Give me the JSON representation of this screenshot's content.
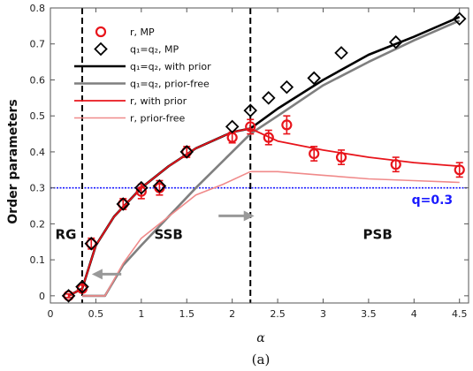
{
  "chart_data": {
    "type": "line",
    "xlabel": "α",
    "ylabel": "Order parameters",
    "caption": "(a)",
    "xlim": [
      0,
      4.6
    ],
    "ylim": [
      -0.02,
      0.8
    ],
    "xticks": [
      0,
      0.5,
      1,
      1.5,
      2,
      2.5,
      3,
      3.5,
      4,
      4.5
    ],
    "xtick_labels": [
      "0",
      "0.5",
      "1",
      "1.5",
      "2",
      "2.5",
      "3",
      "3.5",
      "4",
      "4.5"
    ],
    "yticks": [
      0,
      0.1,
      0.2,
      0.3,
      0.4,
      0.5,
      0.6,
      0.7,
      0.8
    ],
    "ytick_labels": [
      "0",
      "0.1",
      "0.2",
      "0.3",
      "0.4",
      "0.5",
      "0.6",
      "0.7",
      "0.8"
    ],
    "grid": false,
    "legend_position": "top-left",
    "series": [
      {
        "name": "r, MP",
        "kind": "scatter-errorbar",
        "marker": "circle",
        "color": "#e8141b",
        "x": [
          0.2,
          0.35,
          0.45,
          0.8,
          1.0,
          1.2,
          1.5,
          2.0,
          2.2,
          2.4,
          2.6,
          2.9,
          3.2,
          3.8,
          4.5
        ],
        "y": [
          0.0,
          0.02,
          0.145,
          0.255,
          0.29,
          0.3,
          0.4,
          0.44,
          0.47,
          0.44,
          0.475,
          0.395,
          0.385,
          0.365,
          0.35
        ],
        "err": [
          0.005,
          0.01,
          0.015,
          0.015,
          0.02,
          0.02,
          0.015,
          0.015,
          0.02,
          0.02,
          0.025,
          0.02,
          0.02,
          0.02,
          0.02
        ]
      },
      {
        "name": "q₁=q₂, MP",
        "kind": "scatter",
        "marker": "diamond",
        "color": "#000000",
        "x": [
          0.2,
          0.35,
          0.45,
          0.8,
          1.0,
          1.2,
          1.5,
          2.0,
          2.2,
          2.4,
          2.6,
          2.9,
          3.2,
          3.8,
          4.5
        ],
        "y": [
          0.0,
          0.025,
          0.145,
          0.255,
          0.3,
          0.305,
          0.4,
          0.47,
          0.515,
          0.55,
          0.58,
          0.605,
          0.675,
          0.705,
          0.77
        ]
      },
      {
        "name": "q₁=q₂, with prior",
        "kind": "line",
        "color": "#000000",
        "width": 2.6,
        "x": [
          0.2,
          0.35,
          0.5,
          0.7,
          1.0,
          1.3,
          1.6,
          2.0,
          2.2,
          2.5,
          3.0,
          3.5,
          4.0,
          4.5
        ],
        "y": [
          0.0,
          0.02,
          0.14,
          0.22,
          0.3,
          0.36,
          0.41,
          0.455,
          0.465,
          0.52,
          0.6,
          0.67,
          0.72,
          0.775
        ]
      },
      {
        "name": "q₁=q₂, prior-free",
        "kind": "line",
        "color": "#7f7f7f",
        "width": 2.6,
        "x": [
          0.35,
          0.6,
          0.8,
          1.0,
          1.3,
          1.6,
          2.0,
          2.2,
          2.5,
          3.0,
          3.5,
          4.0,
          4.5
        ],
        "y": [
          0.0,
          0.0,
          0.085,
          0.14,
          0.22,
          0.3,
          0.4,
          0.45,
          0.5,
          0.585,
          0.65,
          0.71,
          0.765
        ]
      },
      {
        "name": "r, with prior",
        "kind": "line",
        "color": "#e8141b",
        "width": 1.8,
        "x": [
          0.2,
          0.35,
          0.5,
          0.7,
          1.0,
          1.3,
          1.6,
          2.0,
          2.2,
          2.5,
          3.0,
          3.5,
          4.0,
          4.5
        ],
        "y": [
          0.0,
          0.02,
          0.14,
          0.22,
          0.3,
          0.36,
          0.41,
          0.455,
          0.465,
          0.43,
          0.405,
          0.385,
          0.37,
          0.36
        ]
      },
      {
        "name": "r, prior-free",
        "kind": "line",
        "color": "#f08a8a",
        "width": 1.6,
        "x": [
          0.35,
          0.6,
          0.8,
          1.0,
          1.3,
          1.6,
          1.9,
          2.2,
          2.5,
          3.0,
          3.5,
          4.0,
          4.5
        ],
        "y": [
          0.0,
          0.0,
          0.09,
          0.16,
          0.22,
          0.28,
          0.31,
          0.345,
          0.345,
          0.335,
          0.325,
          0.32,
          0.315
        ]
      }
    ],
    "reference_lines": [
      {
        "type": "horizontal",
        "y": 0.3,
        "color": "#1a1aff",
        "style": "dotted",
        "label": "q=0.3"
      },
      {
        "type": "vertical",
        "x": 0.35,
        "color": "#000000",
        "style": "dashed"
      },
      {
        "type": "vertical",
        "x": 2.2,
        "color": "#000000",
        "style": "dashed"
      }
    ],
    "regions": [
      {
        "label": "RG",
        "x": 0.17,
        "y": 0.17
      },
      {
        "label": "SSB",
        "x": 1.3,
        "y": 0.17
      },
      {
        "label": "PSB",
        "x": 3.6,
        "y": 0.17
      }
    ],
    "arrows": [
      {
        "from": [
          1.85,
          0.222
        ],
        "to": [
          2.2,
          0.222
        ],
        "color": "#999999"
      },
      {
        "from": [
          0.78,
          0.06
        ],
        "to": [
          0.5,
          0.06
        ],
        "color": "#999999"
      }
    ]
  }
}
